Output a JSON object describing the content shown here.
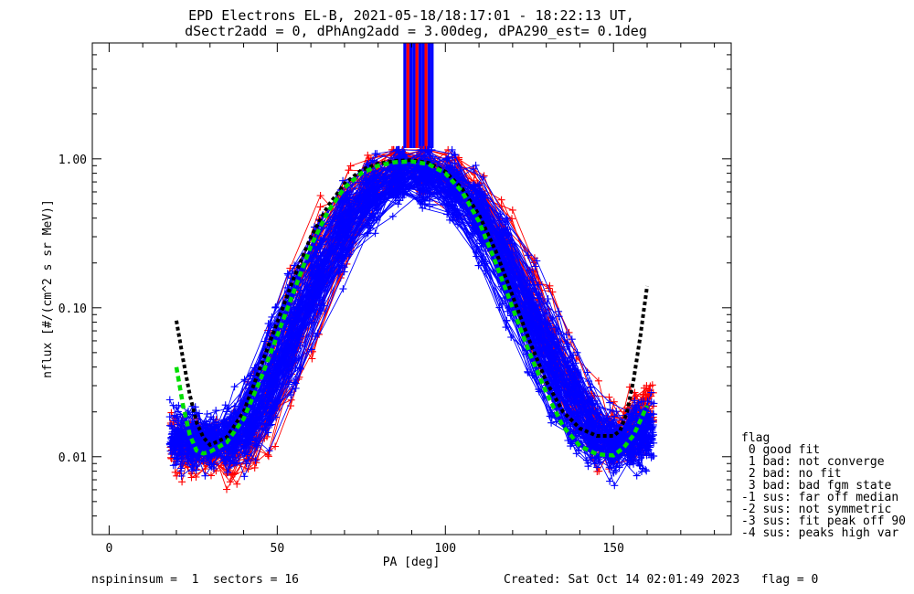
{
  "chart_data": {
    "type": "line",
    "title": "EPD Electrons EL-B, 2021-05-18/18:17:01 - 18:22:13 UT,",
    "subtitle": "dSectr2add = 0, dPhAng2add = 3.00deg, dPA290_est=   0.1deg",
    "xlabel": "PA [deg]",
    "ylabel": "nflux [#/(cm^2 s sr MeV)]",
    "xlim": [
      -5,
      185
    ],
    "ylim": [
      0.003,
      6
    ],
    "yscale": "log",
    "x_ticks": [
      0,
      50,
      100,
      150
    ],
    "x_tick_labels": [
      "0",
      "50",
      "100",
      "150"
    ],
    "y_ticks": [
      0.01,
      0.1,
      1.0
    ],
    "y_tick_labels": [
      "0.01",
      "0.10",
      "1.00"
    ],
    "grid": false,
    "legend": "right",
    "series": [
      {
        "color": "#0000ff",
        "marker": "+",
        "count": 120,
        "style": "thin line",
        "x": [
          20,
          30,
          40,
          50,
          60,
          70,
          80,
          90,
          100,
          110,
          120,
          130,
          140,
          150,
          160
        ],
        "y": [
          0.014,
          0.012,
          0.014,
          0.04,
          0.14,
          0.38,
          0.68,
          0.82,
          0.76,
          0.44,
          0.16,
          0.05,
          0.018,
          0.011,
          0.016
        ]
      },
      {
        "color": "#ff0000",
        "marker": "+",
        "count": 45,
        "style": "thin line",
        "x": [
          20,
          30,
          40,
          50,
          60,
          70,
          80,
          90,
          100,
          110,
          120,
          130,
          140,
          150,
          160
        ],
        "y": [
          0.012,
          0.01,
          0.011,
          0.035,
          0.15,
          0.42,
          0.8,
          0.95,
          0.85,
          0.5,
          0.2,
          0.06,
          0.02,
          0.011,
          0.022
        ]
      },
      {
        "color": "#000000",
        "style": "thick dotted fit",
        "x": [
          20,
          22,
          24,
          26,
          28,
          30,
          35,
          40,
          45,
          50,
          55,
          60,
          65,
          70,
          75,
          80,
          85,
          90,
          95,
          100,
          105,
          110,
          115,
          120,
          125,
          130,
          135,
          140,
          145,
          150,
          152,
          154,
          156,
          158,
          160
        ],
        "y": [
          0.082,
          0.045,
          0.026,
          0.017,
          0.0135,
          0.012,
          0.0135,
          0.02,
          0.04,
          0.08,
          0.16,
          0.3,
          0.48,
          0.68,
          0.84,
          0.93,
          0.97,
          0.98,
          0.94,
          0.82,
          0.63,
          0.42,
          0.24,
          0.12,
          0.06,
          0.032,
          0.02,
          0.0155,
          0.0138,
          0.0138,
          0.015,
          0.02,
          0.033,
          0.065,
          0.14
        ]
      },
      {
        "color": "#00dd00",
        "style": "thick dashed fit",
        "x": [
          20,
          22,
          24,
          26,
          28,
          30,
          35,
          40,
          45,
          50,
          55,
          60,
          65,
          70,
          75,
          80,
          85,
          90,
          95,
          100,
          105,
          110,
          115,
          120,
          125,
          130,
          135,
          140,
          145,
          150,
          153,
          156,
          160
        ],
        "y": [
          0.04,
          0.022,
          0.014,
          0.011,
          0.0105,
          0.0108,
          0.0125,
          0.018,
          0.033,
          0.065,
          0.13,
          0.26,
          0.44,
          0.64,
          0.8,
          0.9,
          0.95,
          0.96,
          0.92,
          0.8,
          0.6,
          0.38,
          0.2,
          0.1,
          0.05,
          0.027,
          0.016,
          0.0118,
          0.0104,
          0.0102,
          0.0115,
          0.014,
          0.022
        ]
      }
    ],
    "saturated_bars": {
      "x_from": 87.5,
      "x_to": 96.5,
      "colors": [
        "#0000ff",
        "#ff0000",
        "#0000ff",
        "#0000ff",
        "#ff0000",
        "#0000ff",
        "#0000ff",
        "#ff0000",
        "#0000ff",
        "#0000ff"
      ]
    }
  },
  "legend": {
    "title": "flag",
    "items": [
      " 0 good fit",
      " 1 bad: not converge",
      " 2 bad: no fit",
      " 3 bad: bad fgm state",
      "-1 sus: far off median",
      "-2 sus: not symmetric",
      "-3 sus: fit peak off 90",
      "-4 sus: peaks high var"
    ]
  },
  "footer": {
    "left": "nspininsum =  1  sectors = 16",
    "right": "Created: Sat Oct 14 02:01:49 2023   flag = 0"
  }
}
